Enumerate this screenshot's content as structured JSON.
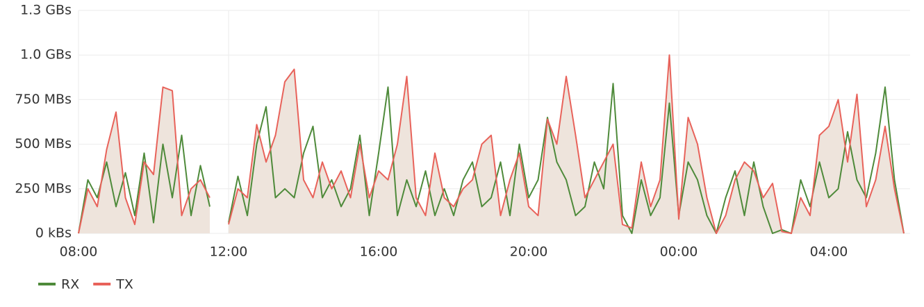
{
  "chart_data": {
    "type": "line",
    "x": [
      0,
      15,
      30,
      45,
      60,
      75,
      90,
      105,
      120,
      135,
      150,
      165,
      180,
      195,
      210,
      225,
      240,
      255,
      270,
      285,
      300,
      315,
      330,
      345,
      360,
      375,
      390,
      405,
      420,
      435,
      450,
      465,
      480,
      495,
      510,
      525,
      540,
      555,
      570,
      585,
      600,
      615,
      630,
      645,
      660,
      675,
      690,
      705,
      720,
      735,
      750,
      765,
      780,
      795,
      810,
      825,
      840,
      855,
      870,
      885,
      900,
      915,
      930,
      945,
      960,
      975,
      990,
      1005,
      1020,
      1035,
      1050,
      1065,
      1080,
      1095,
      1110,
      1125,
      1140,
      1155,
      1170,
      1185,
      1200,
      1215,
      1230,
      1245,
      1260,
      1275,
      1290,
      1305,
      1320
    ],
    "series": [
      {
        "name": "RX",
        "color": "#4e8a3a",
        "values": [
          0,
          300,
          200,
          400,
          150,
          340,
          100,
          450,
          60,
          500,
          200,
          550,
          100,
          380,
          150,
          null,
          60,
          320,
          100,
          500,
          710,
          200,
          250,
          200,
          450,
          600,
          200,
          300,
          150,
          250,
          550,
          100,
          450,
          820,
          100,
          300,
          150,
          350,
          100,
          250,
          100,
          300,
          400,
          150,
          200,
          400,
          100,
          500,
          200,
          300,
          650,
          400,
          300,
          100,
          150,
          400,
          250,
          840,
          100,
          0,
          300,
          100,
          200,
          730,
          100,
          400,
          300,
          100,
          0,
          200,
          350,
          100,
          400,
          150,
          0,
          20,
          0,
          300,
          150,
          400,
          200,
          250,
          570,
          300,
          200,
          450,
          820,
          300,
          0
        ]
      },
      {
        "name": "TX",
        "color": "#e8625a",
        "values": [
          0,
          250,
          150,
          470,
          680,
          200,
          50,
          400,
          330,
          820,
          800,
          100,
          250,
          300,
          200,
          null,
          50,
          250,
          200,
          610,
          400,
          550,
          850,
          920,
          300,
          200,
          400,
          250,
          350,
          200,
          500,
          200,
          350,
          300,
          500,
          880,
          200,
          100,
          450,
          200,
          150,
          250,
          300,
          500,
          550,
          100,
          300,
          450,
          150,
          100,
          640,
          500,
          880,
          550,
          200,
          300,
          400,
          500,
          50,
          30,
          400,
          150,
          300,
          1000,
          80,
          650,
          500,
          200,
          0,
          100,
          300,
          400,
          350,
          200,
          280,
          10,
          0,
          200,
          100,
          550,
          600,
          750,
          400,
          780,
          150,
          300,
          600,
          250,
          0
        ]
      }
    ],
    "xlim": [
      0,
      1330
    ],
    "xticks": [
      {
        "value": 0,
        "label": "08:00"
      },
      {
        "value": 240,
        "label": "12:00"
      },
      {
        "value": 480,
        "label": "16:00"
      },
      {
        "value": 720,
        "label": "20:00"
      },
      {
        "value": 960,
        "label": "00:00"
      },
      {
        "value": 1200,
        "label": "04:00"
      }
    ],
    "ylim": [
      0,
      1250
    ],
    "yticks": [
      {
        "value": 0,
        "label": "0 kBs"
      },
      {
        "value": 250,
        "label": "250 MBs"
      },
      {
        "value": 500,
        "label": "500 MBs"
      },
      {
        "value": 750,
        "label": "750 MBs"
      },
      {
        "value": 1000,
        "label": "1.0 GBs"
      },
      {
        "value": 1250,
        "label": "1.3 GBs"
      }
    ],
    "grid": true,
    "legend": "bottom-left",
    "area_color": "#eee4dc"
  }
}
